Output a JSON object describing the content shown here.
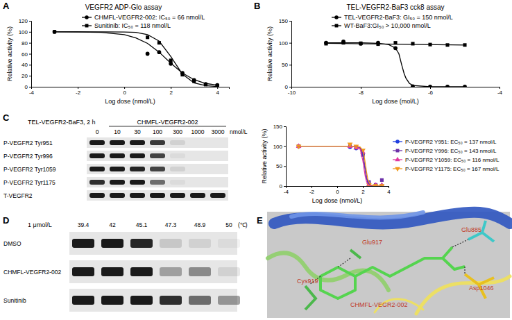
{
  "panel_labels": [
    "A",
    "B",
    "C",
    "D",
    "E"
  ],
  "chart_data": [
    {
      "type": "scatter",
      "title": "VEGFR2 ADP-Glo assay",
      "x_label": "Log dose (nmol/L)",
      "y_label": "Relative activity (%)",
      "xlim": [
        -4,
        4.5
      ],
      "xticks": [
        -4,
        -2,
        0,
        2,
        4
      ],
      "ylim": [
        0,
        120
      ],
      "yticks": [
        0,
        20,
        40,
        60,
        80,
        100,
        120
      ],
      "legend": "upper right",
      "series": [
        {
          "name": "CHMFL-VEGFR2-002: IC₅₀ = 66 nmol/L",
          "color": "#000000",
          "marker": "circle",
          "x": [
            -3,
            1,
            1.5,
            2,
            2.5,
            3,
            3.5,
            4
          ],
          "values": [
            100,
            60,
            63,
            42,
            25,
            12,
            5,
            3
          ]
        },
        {
          "name": "Sunitinib: IC₅₀ = 118 nmol/L",
          "color": "#000000",
          "marker": "square",
          "x": [
            -3,
            1,
            1.5,
            2,
            2.5,
            3,
            3.5,
            4
          ],
          "values": [
            100,
            90,
            80,
            48,
            22,
            10,
            4,
            2
          ]
        },
        {
          "type": "line",
          "color": "#000000",
          "x": [
            -3,
            -2,
            -1,
            0,
            0.5,
            1,
            1.5,
            2,
            2.5,
            3,
            3.5,
            4
          ],
          "values": [
            100,
            99.8,
            98.9,
            95,
            89,
            79,
            63,
            43,
            25,
            13,
            6,
            3
          ]
        },
        {
          "type": "line",
          "color": "#000000",
          "x": [
            -3,
            -2,
            -1,
            0,
            0.5,
            1,
            1.5,
            2,
            2.5,
            3,
            3.5,
            4
          ],
          "values": [
            100,
            100,
            100,
            99.7,
            99,
            95,
            83,
            55,
            23,
            7,
            2,
            0.5
          ]
        }
      ]
    },
    {
      "type": "scatter",
      "title": "TEL-VEGFR2-BaF3 cck8 assay",
      "x_label": "Log dose (mol/L)",
      "y_label": "Relative activity (%)",
      "xlim": [
        -10,
        -4
      ],
      "xticks": [
        -10,
        -8,
        -6,
        -4
      ],
      "ylim": [
        0,
        150
      ],
      "yticks": [
        0,
        50,
        100,
        150
      ],
      "legend": "upper right",
      "series": [
        {
          "name": "TEL-VEGFR2-BaF3: GI₅₀ = 150 nmol/L",
          "color": "#000000",
          "marker": "circle",
          "x": [
            -9,
            -8.5,
            -8,
            -7.5,
            -7,
            -6.5,
            -6,
            -5.5,
            -5
          ],
          "values": [
            100,
            103,
            98,
            100,
            88,
            1,
            0,
            0,
            0
          ]
        },
        {
          "name": "WT-BaF3:GI₅₀ > 10,000 nmol/L",
          "color": "#000000",
          "marker": "square",
          "x": [
            -9,
            -8.5,
            -8,
            -7.5,
            -7,
            -6.5,
            -6,
            -5.5,
            -5
          ],
          "values": [
            98,
            100,
            99,
            97,
            100,
            98,
            96,
            95,
            95
          ]
        },
        {
          "type": "line",
          "color": "#000000",
          "x": [
            -9,
            -8,
            -7.5,
            -7.2,
            -7,
            -6.9,
            -6.82,
            -6.75,
            -6.7,
            -6.6,
            -6.5,
            -6,
            -5
          ],
          "values": [
            100,
            100,
            99,
            96,
            88,
            75,
            50,
            30,
            20,
            8,
            3,
            0,
            0
          ]
        },
        {
          "type": "line",
          "color": "#000000",
          "x": [
            -9,
            -5
          ],
          "values": [
            99,
            95
          ]
        }
      ]
    },
    {
      "type": "scatter",
      "x_label": "Log dose (nmol/L)",
      "y_label": "Relative activity (%)",
      "xlim": [
        -4,
        4
      ],
      "xticks": [
        -4,
        -2,
        0,
        2,
        4
      ],
      "ylim": [
        0,
        150
      ],
      "yticks": [
        0,
        50,
        100,
        150
      ],
      "legend": "right",
      "series": [
        {
          "name": "P-VEGFR2 Y951: EC₅₀ = 137 nmol/L",
          "color": "#1f3fdf",
          "marker": "circle",
          "x": [
            -3,
            1,
            1.48,
            2,
            2.48,
            3,
            3.48
          ],
          "values": [
            100,
            98,
            95,
            80,
            5,
            2,
            1
          ]
        },
        {
          "name": "P-VEGFR2 Y996: EC₅₀ = 143 nmol/L",
          "color": "#6b2fa8",
          "marker": "square",
          "x": [
            -3,
            1,
            1.48,
            2,
            2.48,
            3,
            3.48
          ],
          "values": [
            100,
            100,
            98,
            78,
            10,
            3,
            15
          ]
        },
        {
          "name": "P-VEGFR2 Y1059: EC₅₀ = 116 nmol/L",
          "color": "#e0389e",
          "marker": "triangle",
          "x": [
            -3,
            1,
            1.48,
            2,
            2.48,
            3,
            3.48
          ],
          "values": [
            100,
            100,
            96,
            85,
            4,
            2,
            2
          ]
        },
        {
          "name": "P-VEGFR2 Y1175: EC₅₀ = 167 nmol/L",
          "color": "#f29a1d",
          "marker": "triangle-down",
          "x": [
            -3,
            1,
            1.48,
            2,
            2.48,
            3,
            3.48
          ],
          "values": [
            100,
            105,
            100,
            90,
            3,
            1,
            1
          ]
        },
        {
          "type": "line",
          "color": "#1f3fdf",
          "x": [
            -3,
            0,
            1,
            1.5,
            1.8,
            2,
            2.1,
            2.2,
            2.3,
            2.4,
            2.6,
            3,
            3.5
          ],
          "values": [
            100,
            100,
            100,
            99.7,
            95.7,
            78,
            58,
            36,
            18,
            8,
            1.4,
            0,
            0
          ]
        },
        {
          "type": "line",
          "color": "#6b2fa8",
          "x": [
            -3,
            0,
            1,
            1.5,
            1.8,
            2,
            2.1,
            2.2,
            2.3,
            2.4,
            2.6,
            3,
            3.5
          ],
          "values": [
            100,
            100,
            100,
            99.7,
            96,
            81,
            62,
            40,
            21,
            9.5,
            1.6,
            0,
            0
          ]
        },
        {
          "type": "line",
          "color": "#e0389e",
          "x": [
            -3,
            0,
            1,
            1.5,
            1.8,
            2,
            2.1,
            2.2,
            2.3,
            2.4,
            2.6,
            3,
            3.5
          ],
          "values": [
            100,
            100,
            100,
            99.4,
            92,
            64,
            42,
            22,
            10,
            4.3,
            0.7,
            0,
            0
          ]
        },
        {
          "type": "line",
          "color": "#f29a1d",
          "x": [
            -3,
            0,
            1,
            1.5,
            1.8,
            2,
            2.1,
            2.2,
            2.3,
            2.4,
            2.6,
            3,
            3.5
          ],
          "values": [
            100,
            100,
            100,
            99.9,
            98,
            89,
            76,
            55,
            33,
            16,
            3,
            0,
            0
          ]
        }
      ]
    }
  ],
  "blots": [
    {
      "title": "TEL-VEGFR2-BaF3, 2 h",
      "treatment": "CHMFL-VEGFR2-002",
      "lanes": [
        0,
        10,
        30,
        100,
        300,
        1000,
        3000
      ],
      "lane_unit": "nmol/L",
      "rows": [
        {
          "label": "P-VEGFR2 Tyr951",
          "bands": [
            1,
            1,
            1,
            0.85,
            0.1,
            0,
            0
          ]
        },
        {
          "label": "P-VEGFR2 Tyr996",
          "bands": [
            1,
            1,
            1,
            0.8,
            0.05,
            0,
            0
          ]
        },
        {
          "label": "P-VEGFR2 Tyr1059",
          "bands": [
            1,
            1,
            0.95,
            0.8,
            0.1,
            0,
            0
          ]
        },
        {
          "label": "P-VEGFR2 Tyr1175",
          "bands": [
            0.9,
            1,
            1,
            0.6,
            0.05,
            0,
            0
          ]
        },
        {
          "label": "T-VEGFR2",
          "bands": [
            1,
            1,
            1,
            1,
            1,
            1,
            1
          ]
        }
      ]
    },
    {
      "title": "1 μmol/L",
      "lanes": [
        39.4,
        42,
        45.1,
        47.3,
        48.9,
        50
      ],
      "lane_unit": "(℃)",
      "rows": [
        {
          "label": "DMSO",
          "bands": [
            1,
            1,
            0.95,
            0.15,
            0.1,
            0.05
          ]
        },
        {
          "label": "CHMFL-VEGFR2-002",
          "bands": [
            1,
            1,
            1,
            0.35,
            0.45,
            0.1
          ]
        },
        {
          "label": "Sunitinib",
          "bands": [
            1,
            1,
            1,
            0.9,
            0.6,
            0.4
          ]
        }
      ]
    }
  ],
  "docking": {
    "residues": [
      "Glu917",
      "Glu885",
      "Cys919",
      "Asp1046"
    ],
    "ligand": "CHMFL-VEGR2-002"
  }
}
